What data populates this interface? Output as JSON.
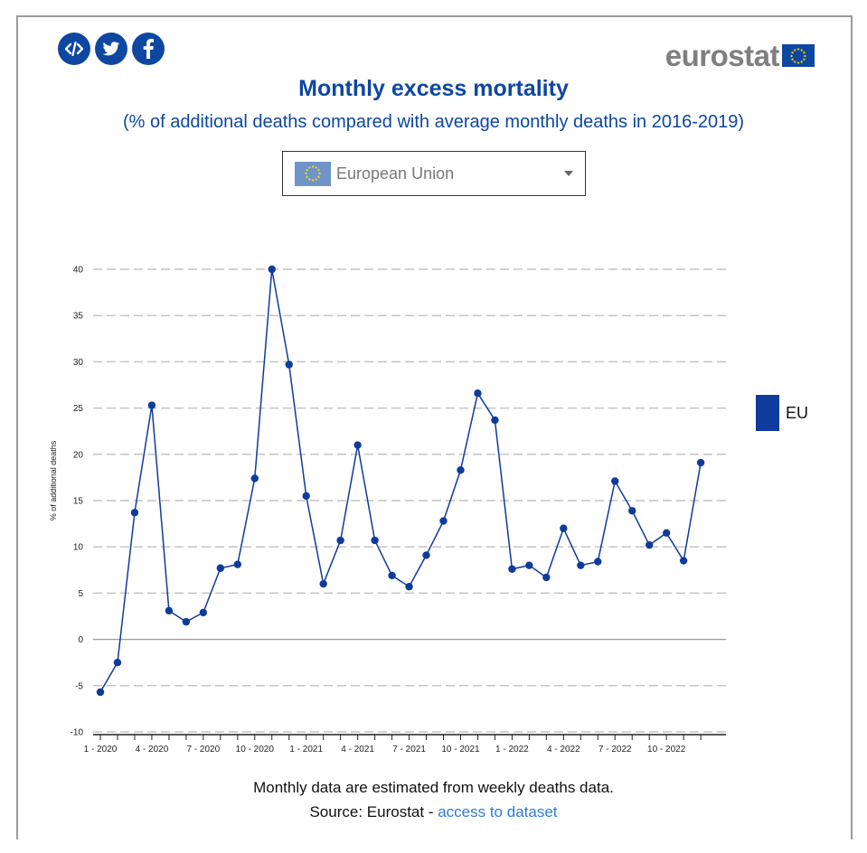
{
  "share": {
    "embed_icon": "code-embed-icon",
    "twitter_icon": "twitter-icon",
    "facebook_icon": "facebook-icon",
    "color": "#0e47a1"
  },
  "logo": {
    "text": "eurostat",
    "flag_icon": "eu-flag-icon"
  },
  "header": {
    "title": "Monthly excess mortality",
    "subtitle": "(% of additional deaths compared with average monthly deaths in 2016-2019)"
  },
  "selector": {
    "value": "European Union",
    "flag_icon": "eu-flag-icon",
    "caret_icon": "caret-down-icon"
  },
  "chart_data": {
    "type": "line",
    "ylabel": "% of additional deaths",
    "xlabel": "",
    "ylim": [
      -10,
      40
    ],
    "yticks": [
      40,
      35,
      30,
      25,
      20,
      15,
      10,
      5,
      0,
      -5,
      -10
    ],
    "grid": "horizontal dashed",
    "legend_placement": "right",
    "x_tick_labels": [
      {
        "index": 0,
        "label": "1 - 2020"
      },
      {
        "index": 3,
        "label": "4 - 2020"
      },
      {
        "index": 6,
        "label": "7 - 2020"
      },
      {
        "index": 9,
        "label": "10 - 2020"
      },
      {
        "index": 12,
        "label": "1 - 2021"
      },
      {
        "index": 15,
        "label": "4 - 2021"
      },
      {
        "index": 18,
        "label": "7 - 2021"
      },
      {
        "index": 21,
        "label": "10 - 2021"
      },
      {
        "index": 24,
        "label": "1 - 2022"
      },
      {
        "index": 27,
        "label": "4 - 2022"
      },
      {
        "index": 30,
        "label": "7 - 2022"
      },
      {
        "index": 33,
        "label": "10 - 2022"
      }
    ],
    "series": [
      {
        "name": "EU",
        "color": "#0e3b9c",
        "values": [
          -5.7,
          -2.5,
          13.7,
          25.3,
          3.1,
          1.9,
          2.9,
          7.7,
          8.1,
          17.4,
          40.0,
          29.7,
          15.5,
          6.0,
          10.7,
          21.0,
          10.7,
          6.9,
          5.7,
          9.1,
          12.8,
          18.3,
          26.6,
          23.7,
          7.6,
          8.0,
          6.7,
          12.0,
          8.0,
          8.4,
          17.1,
          13.9,
          10.2,
          11.5,
          8.5,
          19.1
        ]
      }
    ]
  },
  "legend": {
    "label": "EU",
    "color": "#0e3b9c"
  },
  "footer": {
    "note": "Monthly data are estimated from weekly deaths data.",
    "source_prefix": "Source: Eurostat - ",
    "source_link": "access to dataset"
  }
}
